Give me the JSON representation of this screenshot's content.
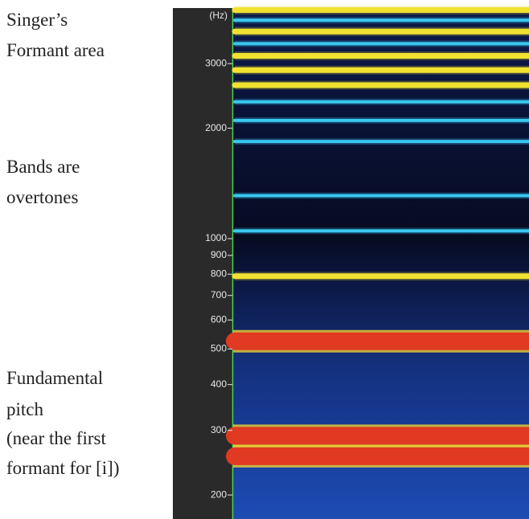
{
  "chart_data": {
    "type": "spectrogram",
    "y_label": "(Hz)",
    "log_y": true,
    "ylim": [
      172,
      4253
    ],
    "yticks": [
      200,
      300,
      400,
      500,
      600,
      700,
      800,
      900,
      1000,
      2000,
      3000
    ],
    "bands": {
      "values": [
        255,
        290,
        525,
        790,
        1050,
        1310,
        1840,
        2100,
        2360,
        2620,
        2880,
        3150,
        3400,
        3670,
        3940,
        4200
      ],
      "colors": [
        "#e03a22",
        "#e03a22",
        "#e03a22",
        "#f2e230",
        "#39c8f0",
        "#39c8f0",
        "#39c8f0",
        "#39c8f0",
        "#39c8f0",
        "#f2e230",
        "#f2e230",
        "#f2e230",
        "#39c8f0",
        "#f2e230",
        "#39c8f0",
        "#f2e230"
      ]
    },
    "annotations": [
      [
        "Singer’s",
        "Formant area"
      ],
      [
        "Bands are",
        "overtones"
      ],
      [
        "Fundamental",
        "pitch",
        "(near the first",
        "formant for [i])"
      ]
    ]
  }
}
